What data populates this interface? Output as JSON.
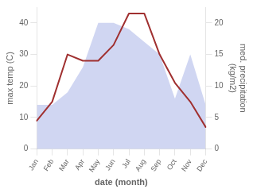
{
  "chart_data": {
    "type": "line",
    "categories": [
      "Jan",
      "Feb",
      "Mar",
      "Apr",
      "May",
      "Jun",
      "Jul",
      "Aug",
      "Sep",
      "Oct",
      "Nov",
      "Dec"
    ],
    "series": [
      {
        "type": "area",
        "color": "#aab4e8",
        "axis": "y2",
        "values": [
          7.0,
          7.0,
          9.0,
          13.0,
          20.0,
          20.0,
          19.0,
          17.0,
          15.0,
          8.0,
          15.0,
          7.0
        ]
      },
      {
        "type": "line",
        "color": "#a03030",
        "values": [
          9,
          15,
          30,
          28,
          28,
          33,
          43,
          43,
          30,
          21,
          15,
          7
        ]
      }
    ],
    "xlabel": "date (month)",
    "ylabel": "max temp (C)",
    "y2label": "med. precipitation\n(kg/m2)",
    "ylim": [
      0,
      45
    ],
    "yticks": [
      0,
      10,
      20,
      30,
      40
    ],
    "y2lim": [
      0,
      22.5
    ],
    "y2ticks": [
      0,
      5,
      10,
      15,
      20
    ],
    "grid": false
  }
}
